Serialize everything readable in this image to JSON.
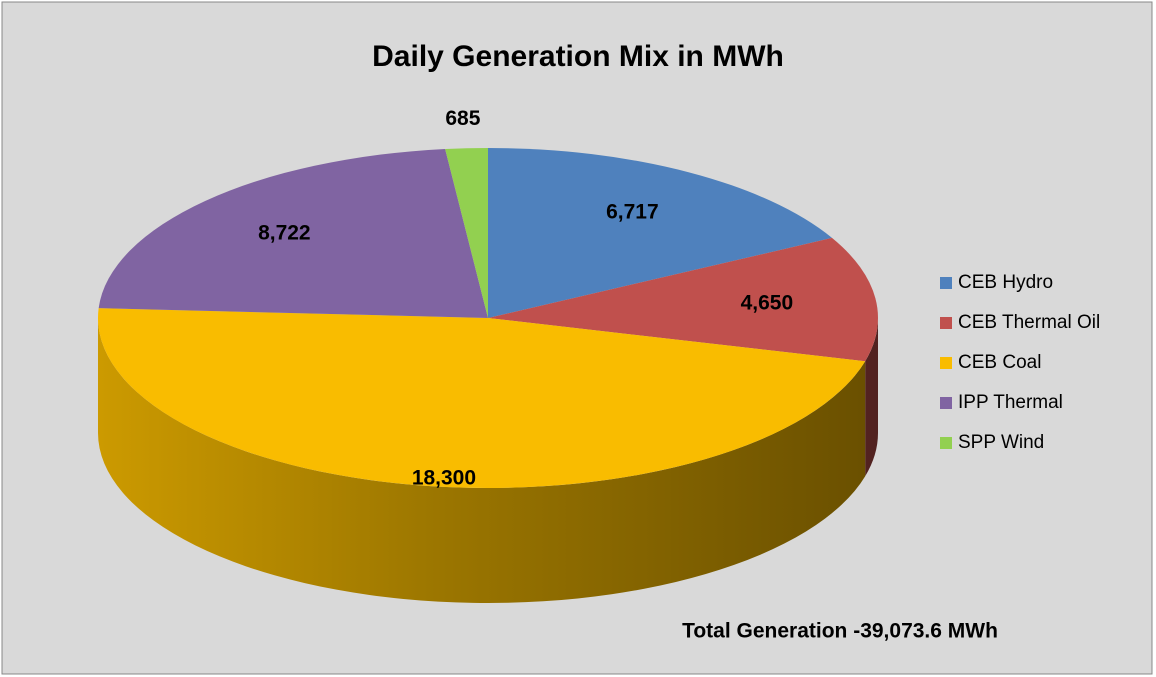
{
  "chart_data": {
    "type": "pie3d",
    "title": "Daily Generation Mix in MWh",
    "categories": [
      "CEB Hydro",
      "CEB Thermal Oil",
      "CEB Coal",
      "IPP Thermal",
      "SPP Wind"
    ],
    "series": [
      {
        "name": "Daily Generation Mix in MWh",
        "values": [
          6717,
          4650,
          18300,
          8722,
          685
        ],
        "value_labels": [
          "6,717",
          "4,650",
          "18,300",
          "8,722",
          "685"
        ],
        "colors": [
          "#4f81bd",
          "#c0504d",
          "#f9bc00",
          "#8064a2",
          "#92d050"
        ]
      }
    ],
    "annotation": "Total Generation -39,073.6 MWh",
    "legend": "right"
  }
}
